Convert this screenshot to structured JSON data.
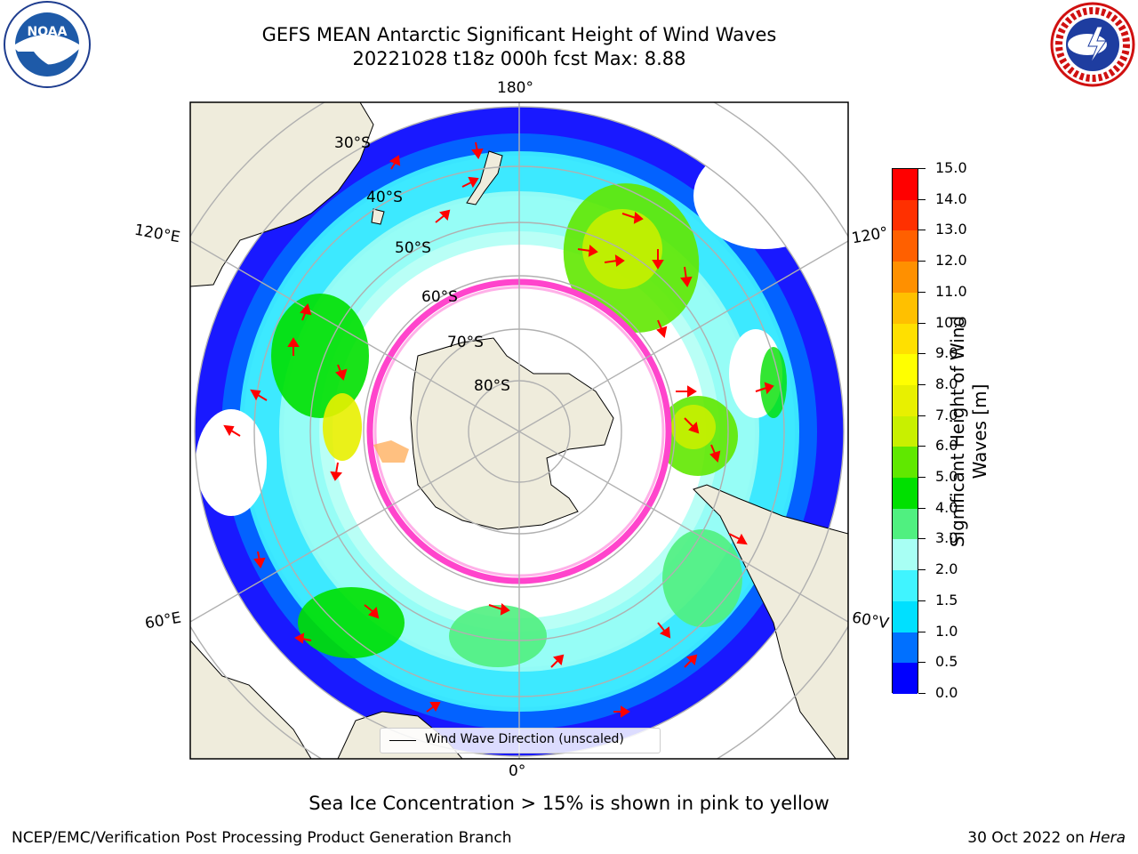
{
  "header": {
    "title_line1": "GEFS MEAN Antarctic Significant Height of Wind Waves",
    "title_line2": "20221028 t18z 000h fcst   Max: 8.88"
  },
  "logos": {
    "left": "noaa-logo",
    "right": "nws-logo"
  },
  "map": {
    "projection": "south-polar-stereographic",
    "longitude_labels": {
      "top": "180°",
      "upper_left": "120°E",
      "upper_right": "120°",
      "lower_left": "60°E",
      "lower_right": "60°V",
      "bottom": "0°"
    },
    "latitude_labels": [
      "30°S",
      "40°S",
      "50°S",
      "60°S",
      "70°S",
      "80°S"
    ],
    "land_color": "#efecdc",
    "grid_color": "#b0b0b0",
    "ice_edge_color": "#ff44cc",
    "arrow_color": "#ff0000"
  },
  "legend": {
    "entry": "Wind Wave Direction (unscaled)"
  },
  "colorbar": {
    "label": "Significant Height of Wind Waves [m]",
    "ticks": [
      "0.0",
      "0.5",
      "1.0",
      "1.5",
      "2.0",
      "3.0",
      "4.0",
      "5.0",
      "6.0",
      "7.0",
      "8.0",
      "9.0",
      "10.0",
      "11.0",
      "12.0",
      "13.0",
      "14.0",
      "15.0"
    ],
    "colors": [
      "#0000ff",
      "#0070ff",
      "#00e0ff",
      "#40f4ff",
      "#a8fff4",
      "#50f080",
      "#00e000",
      "#60e800",
      "#c8f000",
      "#e8f000",
      "#ffff00",
      "#ffe000",
      "#ffc000",
      "#ff9000",
      "#ff6000",
      "#ff3000",
      "#ff0000"
    ]
  },
  "footer": {
    "note": "Sea Ice Concentration > 15% is shown in pink to yellow",
    "left": "NCEP/EMC/Verification Post Processing Product Generation Branch",
    "right_prefix": "30 Oct 2022 on ",
    "right_machine": "Hera"
  }
}
